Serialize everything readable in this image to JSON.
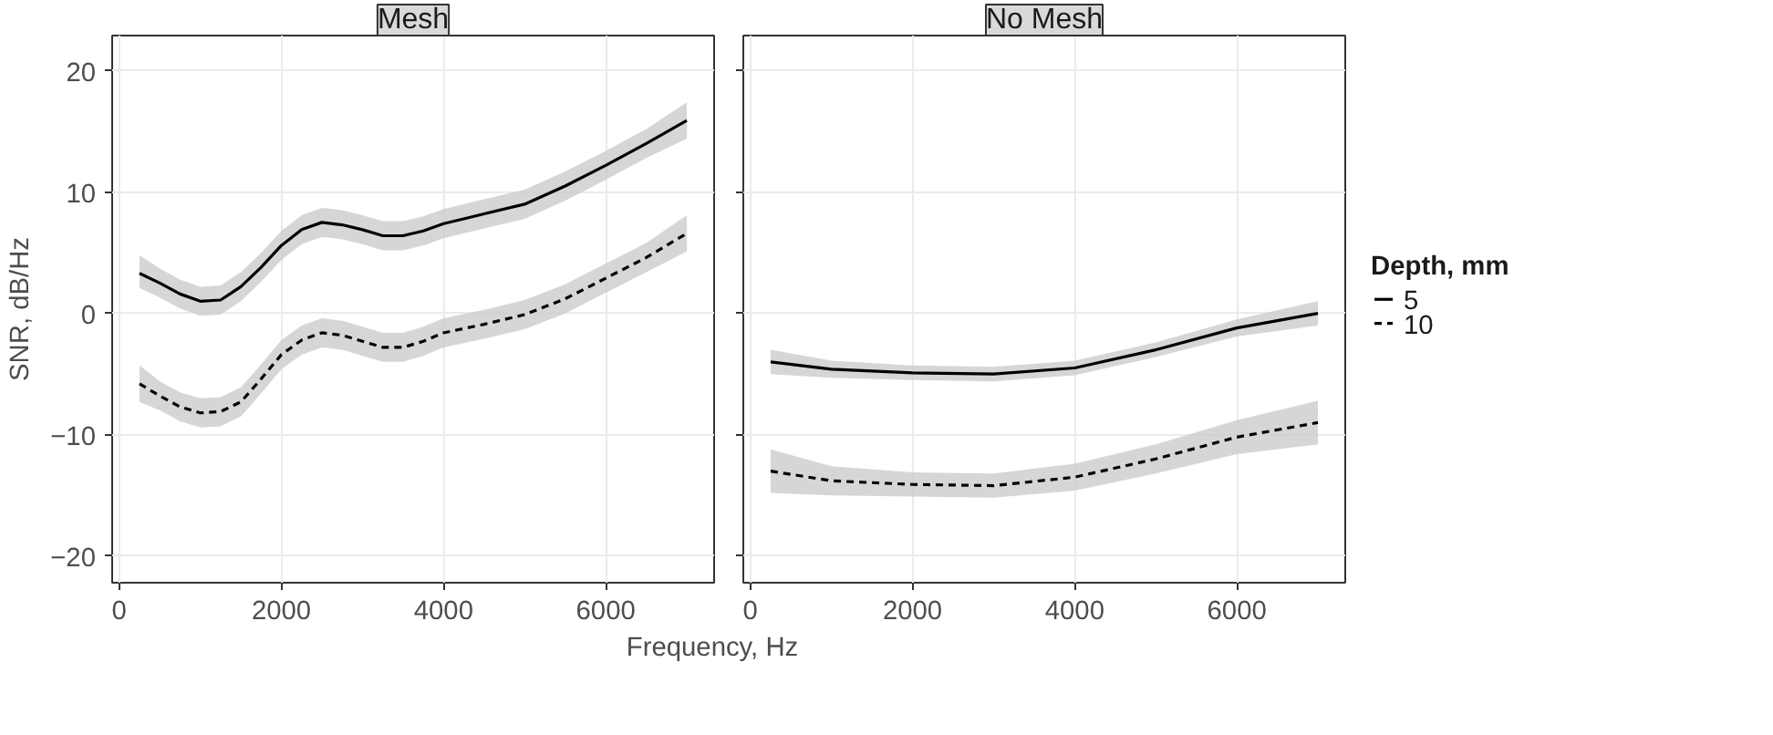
{
  "chart_data": [
    {
      "type": "line",
      "title": "Mesh",
      "xlabel": "Frequency, Hz",
      "ylabel": "SNR, dB/Hz",
      "xlim": [
        -87,
        7337
      ],
      "ylim": [
        -22.2,
        22.9
      ],
      "xticks": [
        0,
        2000,
        4000,
        6000
      ],
      "yticks": [
        -20,
        -10,
        0,
        10,
        20
      ],
      "grid": true,
      "legend": "right",
      "x": [
        250,
        500,
        750,
        1000,
        1250,
        1500,
        1750,
        2000,
        2250,
        2500,
        2750,
        3000,
        3250,
        3500,
        3750,
        4000,
        4500,
        5000,
        5500,
        6000,
        6500,
        7000
      ],
      "series": [
        {
          "name": "5",
          "color": "#000000",
          "line_style": "solid",
          "values": [
            3.3,
            2.5,
            1.6,
            1.0,
            1.1,
            2.2,
            3.8,
            5.6,
            6.9,
            7.5,
            7.3,
            6.9,
            6.4,
            6.4,
            6.8,
            7.4,
            8.2,
            9.0,
            10.5,
            12.2,
            14.0,
            15.9
          ],
          "lower": [
            2.1,
            1.3,
            0.4,
            -0.2,
            -0.1,
            1.0,
            2.6,
            4.4,
            5.7,
            6.3,
            6.1,
            5.7,
            5.2,
            5.2,
            5.6,
            6.2,
            7.0,
            7.8,
            9.3,
            11.0,
            12.8,
            14.4
          ],
          "upper": [
            4.8,
            3.7,
            2.8,
            2.2,
            2.3,
            3.4,
            5.0,
            6.8,
            8.1,
            8.7,
            8.5,
            8.1,
            7.6,
            7.6,
            8.0,
            8.6,
            9.4,
            10.2,
            11.7,
            13.4,
            15.2,
            17.4
          ]
        },
        {
          "name": "10",
          "color": "#000000",
          "line_style": "dashed",
          "values": [
            -5.8,
            -6.8,
            -7.7,
            -8.2,
            -8.1,
            -7.3,
            -5.4,
            -3.4,
            -2.2,
            -1.6,
            -1.8,
            -2.3,
            -2.8,
            -2.8,
            -2.3,
            -1.6,
            -0.9,
            -0.1,
            1.2,
            2.9,
            4.6,
            6.6
          ],
          "lower": [
            -7.3,
            -8.0,
            -8.9,
            -9.4,
            -9.3,
            -8.5,
            -6.6,
            -4.6,
            -3.4,
            -2.8,
            -3.0,
            -3.5,
            -4.0,
            -4.0,
            -3.5,
            -2.8,
            -2.1,
            -1.3,
            0.0,
            1.7,
            3.4,
            5.1
          ],
          "upper": [
            -4.3,
            -5.6,
            -6.5,
            -7.0,
            -6.9,
            -6.1,
            -4.2,
            -2.2,
            -1.0,
            -0.4,
            -0.6,
            -1.1,
            -1.6,
            -1.6,
            -1.1,
            -0.4,
            0.3,
            1.1,
            2.4,
            4.1,
            5.8,
            8.1
          ]
        }
      ]
    },
    {
      "type": "line",
      "title": "No Mesh",
      "legend_title": "Depth, mm",
      "legend": "right",
      "tick_labels": "x",
      "xlim": [
        -87,
        7337
      ],
      "ylim": [
        -22.2,
        22.9
      ],
      "xticks": [
        0,
        2000,
        4000,
        6000
      ],
      "yticks": [
        -20,
        -10,
        0,
        10,
        20
      ],
      "grid": true,
      "x": [
        250,
        1000,
        2000,
        3000,
        4000,
        5000,
        6000,
        7000
      ],
      "series": [
        {
          "name": "5",
          "color": "#000000",
          "line_style": "solid",
          "values": [
            -4,
            -4.6,
            -4.9,
            -5.0,
            -4.5,
            -3,
            -1.2,
            0
          ],
          "lower": [
            -5,
            -5.3,
            -5.5,
            -5.6,
            -5.1,
            -3.6,
            -1.9,
            -1
          ],
          "upper": [
            -3,
            -3.9,
            -4.3,
            -4.4,
            -3.9,
            -2.4,
            -0.5,
            1
          ]
        },
        {
          "name": "10",
          "color": "#000000",
          "line_style": "dashed",
          "values": [
            -13,
            -13.8,
            -14.1,
            -14.2,
            -13.5,
            -12,
            -10.2,
            -9
          ],
          "lower": [
            -14.8,
            -15,
            -15.1,
            -15.2,
            -14.6,
            -13.2,
            -11.6,
            -10.8
          ],
          "upper": [
            -11.2,
            -12.6,
            -13.1,
            -13.2,
            -12.4,
            -10.8,
            -8.8,
            -7.2
          ]
        }
      ]
    }
  ]
}
